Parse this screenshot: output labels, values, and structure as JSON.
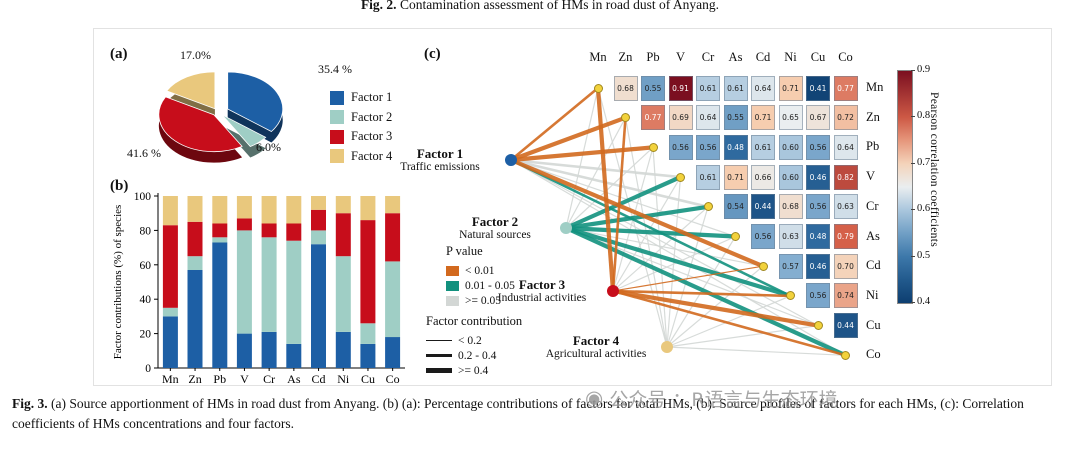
{
  "top_caption": {
    "fig_label": "Fig. 2.",
    "text": " Contamination assessment of HMs in road dust of Anyang."
  },
  "bottom_caption": {
    "fig_label": "Fig. 3.",
    "text": " (a) Source apportionment of HMs in road dust from Anyang. (b) (a): Percentage contributions of factors for total HMs, (b): Source profiles of factors for each HMs, (c): Correlation coefficients of HMs concentrations and four factors."
  },
  "watermark": {
    "icon": "wechat-official-account-icon",
    "text": "公众号 ：R语言与生态环境"
  },
  "panels": {
    "a_label": "(a)",
    "b_label": "(b)",
    "c_label": "(c)"
  },
  "factors": [
    {
      "name": "Factor 1",
      "source": "Traffic emissions",
      "color": "#1d5fa5"
    },
    {
      "name": "Factor 2",
      "source": "Natural sources",
      "color": "#9fcec5"
    },
    {
      "name": "Factor 3",
      "source": "Industrial activities",
      "color": "#c70d1b"
    },
    {
      "name": "Factor 4",
      "source": "Agricultural activities",
      "color": "#e9c87d"
    }
  ],
  "chart_data": [
    {
      "id": "source-apportionment-pie",
      "type": "pie",
      "labels": [
        "Factor 1",
        "Factor 2",
        "Factor 3",
        "Factor 4"
      ],
      "values": [
        35.4,
        6.0,
        41.6,
        17.0
      ],
      "value_labels": [
        "35.4 %",
        "6.0%",
        "41.6 %",
        "17.0%"
      ],
      "legend_position": "right"
    },
    {
      "id": "factor-contributions-stacked-bar",
      "type": "bar",
      "stacked": true,
      "title": "",
      "xlabel": "",
      "ylabel": "Factor contributions (%) of species",
      "ylim": [
        0,
        100
      ],
      "yticks": [
        0,
        20,
        40,
        60,
        80,
        100
      ],
      "categories": [
        "Mn",
        "Zn",
        "Pb",
        "V",
        "Cr",
        "As",
        "Cd",
        "Ni",
        "Cu",
        "Co"
      ],
      "series": [
        {
          "name": "Factor 1",
          "values": [
            30,
            57,
            73,
            20,
            21,
            14,
            72,
            21,
            14,
            18
          ]
        },
        {
          "name": "Factor 2",
          "values": [
            5,
            8,
            3,
            60,
            55,
            60,
            8,
            44,
            12,
            44
          ]
        },
        {
          "name": "Factor 3",
          "values": [
            48,
            20,
            8,
            7,
            8,
            10,
            12,
            25,
            60,
            28
          ]
        },
        {
          "name": "Factor 4",
          "values": [
            17,
            15,
            16,
            13,
            16,
            16,
            8,
            10,
            14,
            10
          ]
        }
      ]
    },
    {
      "id": "correlation-heatmap-network",
      "type": "heatmap",
      "elements": [
        "Mn",
        "Zn",
        "Pb",
        "V",
        "Cr",
        "As",
        "Cd",
        "Ni",
        "Cu",
        "Co"
      ],
      "correlations": {
        "Mn": {
          "Zn": 0.68,
          "Pb": 0.55,
          "V": 0.91,
          "Cr": 0.61,
          "As": 0.61,
          "Cd": 0.64,
          "Ni": 0.71,
          "Cu": 0.41,
          "Co": 0.77
        },
        "Zn": {
          "Pb": 0.77,
          "V": 0.69,
          "Cr": 0.64,
          "As": 0.55,
          "Cd": 0.71,
          "Ni": 0.65,
          "Cu": 0.67,
          "Co": 0.72
        },
        "Pb": {
          "V": 0.56,
          "Cr": 0.56,
          "As": 0.48,
          "Cd": 0.61,
          "Ni": 0.6,
          "Cu": 0.56,
          "Co": 0.64
        },
        "V": {
          "Cr": 0.61,
          "As": 0.71,
          "Cd": 0.66,
          "Ni": 0.6,
          "Cu": 0.46,
          "Co": 0.82
        },
        "Cr": {
          "As": 0.54,
          "Cd": 0.44,
          "Ni": 0.68,
          "Cu": 0.56,
          "Co": 0.63
        },
        "As": {
          "Cd": 0.56,
          "Ni": 0.63,
          "Cu": 0.48,
          "Co": 0.79
        },
        "Cd": {
          "Ni": 0.57,
          "Cu": 0.46,
          "Co": 0.7
        },
        "Ni": {
          "Cu": 0.56,
          "Co": 0.74
        },
        "Cu": {
          "Co": 0.44
        }
      },
      "colorbar": {
        "label": "Pearson correlation coefficients",
        "range": [
          0.4,
          0.9
        ],
        "ticks": [
          0.9,
          0.8,
          0.7,
          0.6,
          0.5,
          0.4
        ]
      },
      "p_legend": {
        "title": "P value",
        "items": [
          {
            "label": "< 0.01",
            "color": "#d2691e"
          },
          {
            "label": "0.01 - 0.05",
            "color": "#12917e"
          },
          {
            "label": ">= 0.05",
            "color": "#d3d7d5"
          }
        ]
      },
      "w_legend": {
        "title": "Factor contribution",
        "items": [
          {
            "label": "< 0.2",
            "px": 1.2
          },
          {
            "label": "0.2 - 0.4",
            "px": 2.6
          },
          {
            "label": ">= 0.4",
            "px": 4.2
          }
        ]
      },
      "edges": [
        {
          "f": 0,
          "e": "Mn",
          "p": "< 0.01",
          "w": "0.2 - 0.4"
        },
        {
          "f": 0,
          "e": "Zn",
          "p": "< 0.01",
          "w": ">= 0.4"
        },
        {
          "f": 0,
          "e": "Pb",
          "p": "< 0.01",
          "w": ">= 0.4"
        },
        {
          "f": 0,
          "e": "V",
          "p": ">= 0.05",
          "w": "0.2 - 0.4"
        },
        {
          "f": 0,
          "e": "Cr",
          "p": ">= 0.05",
          "w": "0.2 - 0.4"
        },
        {
          "f": 0,
          "e": "As",
          "p": ">= 0.05",
          "w": "< 0.2"
        },
        {
          "f": 0,
          "e": "Cd",
          "p": "< 0.01",
          "w": ">= 0.4"
        },
        {
          "f": 0,
          "e": "Ni",
          "p": "0.01 - 0.05",
          "w": "0.2 - 0.4"
        },
        {
          "f": 0,
          "e": "Cu",
          "p": ">= 0.05",
          "w": "< 0.2"
        },
        {
          "f": 0,
          "e": "Co",
          "p": ">= 0.05",
          "w": "< 0.2"
        },
        {
          "f": 1,
          "e": "Mn",
          "p": ">= 0.05",
          "w": "< 0.2"
        },
        {
          "f": 1,
          "e": "Zn",
          "p": ">= 0.05",
          "w": "< 0.2"
        },
        {
          "f": 1,
          "e": "Pb",
          "p": ">= 0.05",
          "w": "< 0.2"
        },
        {
          "f": 1,
          "e": "V",
          "p": "0.01 - 0.05",
          "w": ">= 0.4"
        },
        {
          "f": 1,
          "e": "Cr",
          "p": "0.01 - 0.05",
          "w": ">= 0.4"
        },
        {
          "f": 1,
          "e": "As",
          "p": "0.01 - 0.05",
          "w": ">= 0.4"
        },
        {
          "f": 1,
          "e": "Cd",
          "p": ">= 0.05",
          "w": "< 0.2"
        },
        {
          "f": 1,
          "e": "Ni",
          "p": "0.01 - 0.05",
          "w": ">= 0.4"
        },
        {
          "f": 1,
          "e": "Cu",
          "p": ">= 0.05",
          "w": "< 0.2"
        },
        {
          "f": 1,
          "e": "Co",
          "p": "0.01 - 0.05",
          "w": ">= 0.4"
        },
        {
          "f": 2,
          "e": "Mn",
          "p": "< 0.01",
          "w": ">= 0.4"
        },
        {
          "f": 2,
          "e": "Zn",
          "p": "< 0.01",
          "w": "0.2 - 0.4"
        },
        {
          "f": 2,
          "e": "Pb",
          "p": ">= 0.05",
          "w": "< 0.2"
        },
        {
          "f": 2,
          "e": "V",
          "p": ">= 0.05",
          "w": "< 0.2"
        },
        {
          "f": 2,
          "e": "Cr",
          "p": ">= 0.05",
          "w": "< 0.2"
        },
        {
          "f": 2,
          "e": "As",
          "p": ">= 0.05",
          "w": "< 0.2"
        },
        {
          "f": 2,
          "e": "Cd",
          "p": "< 0.01",
          "w": "< 0.2"
        },
        {
          "f": 2,
          "e": "Ni",
          "p": "< 0.01",
          "w": "0.2 - 0.4"
        },
        {
          "f": 2,
          "e": "Cu",
          "p": "< 0.01",
          "w": ">= 0.4"
        },
        {
          "f": 2,
          "e": "Co",
          "p": "< 0.01",
          "w": "0.2 - 0.4"
        },
        {
          "f": 3,
          "e": "Mn",
          "p": ">= 0.05",
          "w": "< 0.2"
        },
        {
          "f": 3,
          "e": "Zn",
          "p": ">= 0.05",
          "w": "< 0.2"
        },
        {
          "f": 3,
          "e": "Pb",
          "p": ">= 0.05",
          "w": "< 0.2"
        },
        {
          "f": 3,
          "e": "V",
          "p": ">= 0.05",
          "w": "< 0.2"
        },
        {
          "f": 3,
          "e": "Cr",
          "p": ">= 0.05",
          "w": "< 0.2"
        },
        {
          "f": 3,
          "e": "As",
          "p": ">= 0.05",
          "w": "< 0.2"
        },
        {
          "f": 3,
          "e": "Cd",
          "p": ">= 0.05",
          "w": "< 0.2"
        },
        {
          "f": 3,
          "e": "Ni",
          "p": ">= 0.05",
          "w": "< 0.2"
        },
        {
          "f": 3,
          "e": "Cu",
          "p": ">= 0.05",
          "w": "< 0.2"
        },
        {
          "f": 3,
          "e": "Co",
          "p": ">= 0.05",
          "w": "< 0.2"
        }
      ]
    }
  ]
}
